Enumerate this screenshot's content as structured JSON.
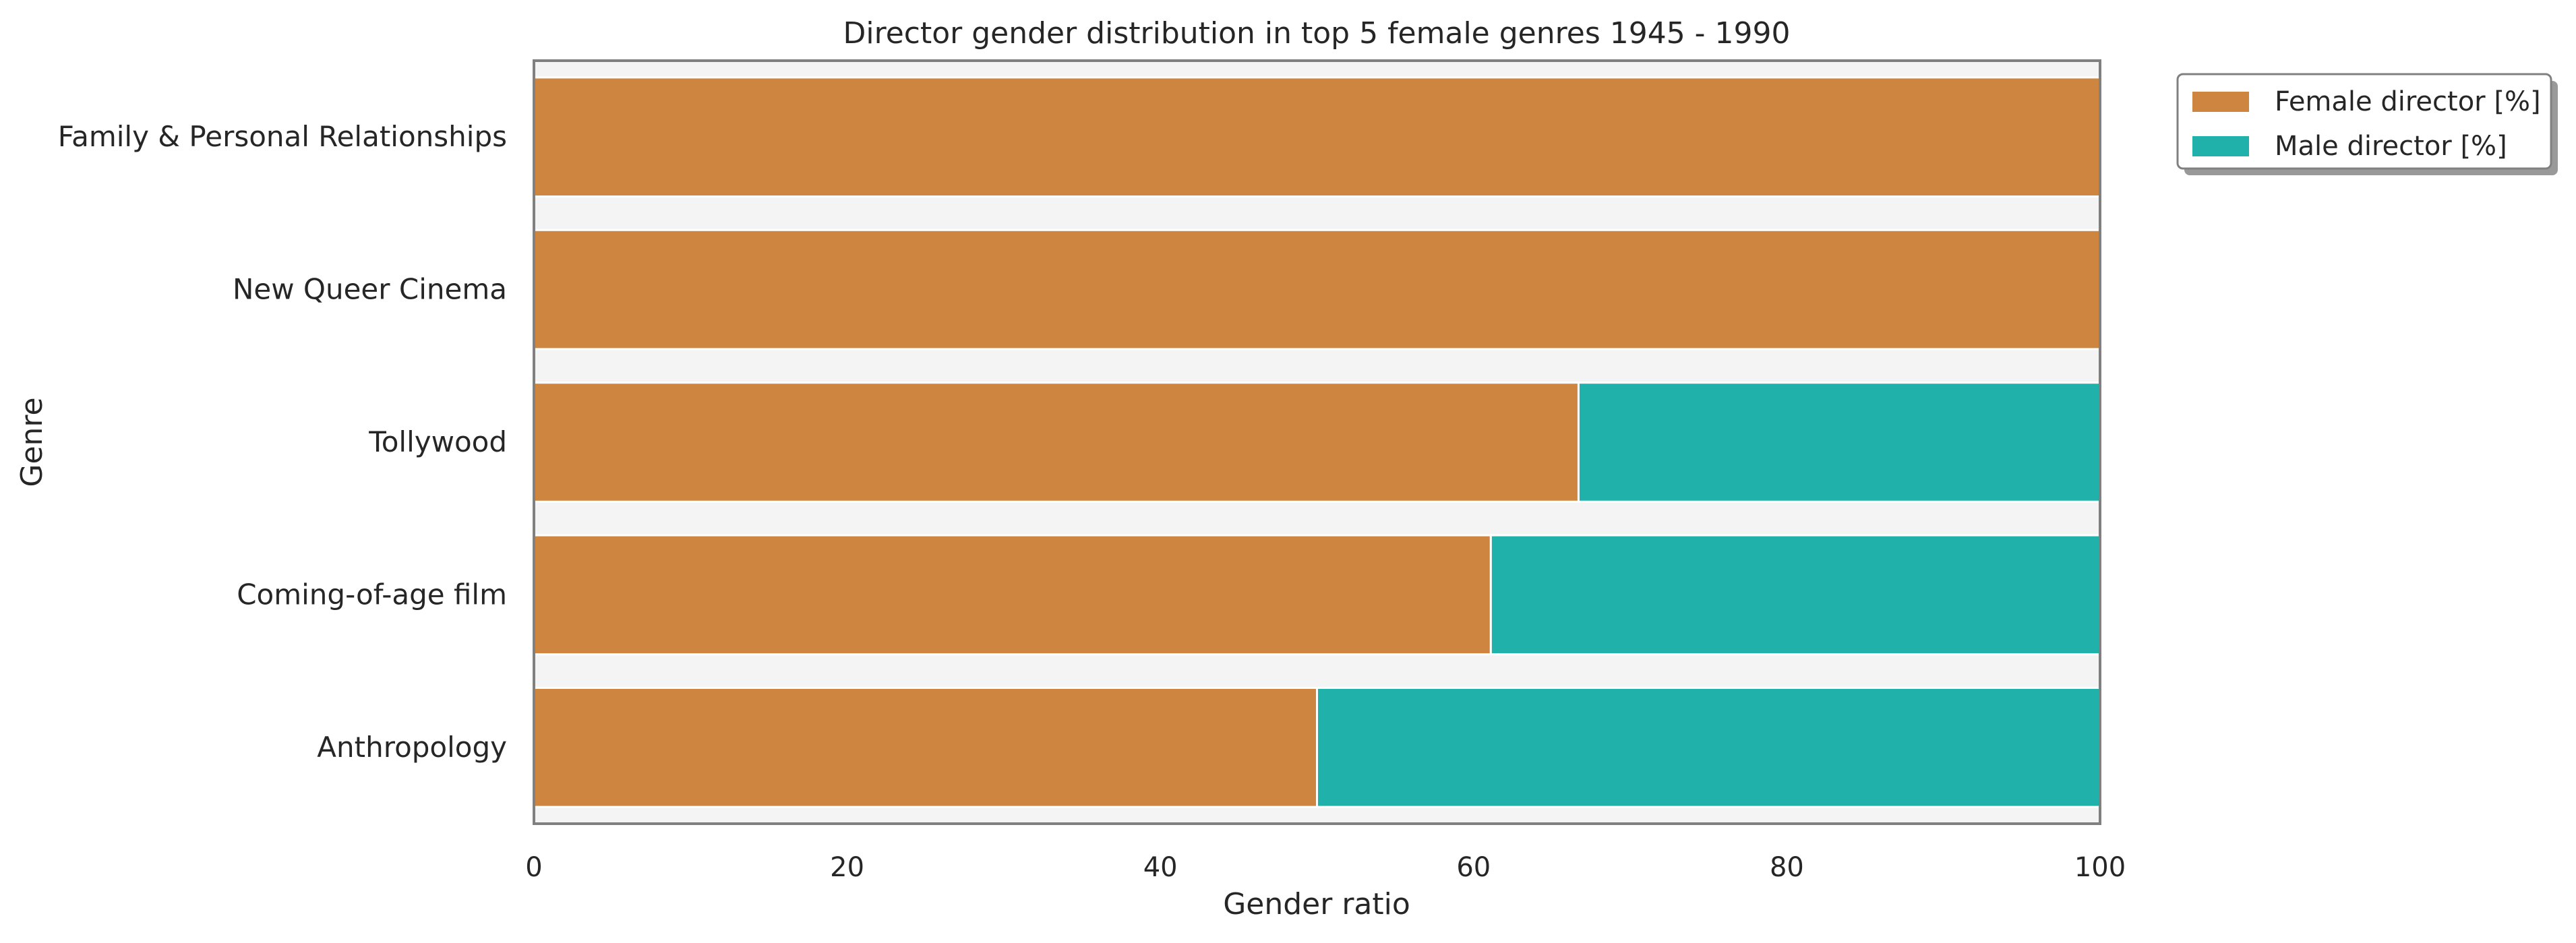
{
  "chart_data": {
    "type": "bar",
    "orientation": "horizontal",
    "stacked": true,
    "title": "Director gender distribution in top 5 female genres 1945 - 1990",
    "xlabel": "Gender ratio",
    "ylabel": "Genre",
    "xlim": [
      0,
      100
    ],
    "xticks": [
      "0",
      "20",
      "40",
      "60",
      "80",
      "100"
    ],
    "categories": [
      "Family & Personal Relationships",
      "New Queer Cinema",
      "Tollywood",
      "Coming-of-age film",
      "Anthropology"
    ],
    "series": [
      {
        "name": "Female director [%]",
        "color": "#cd853f",
        "values": [
          100,
          100,
          66.7,
          61.1,
          50
        ]
      },
      {
        "name": "Male director [%]",
        "color": "#20b2aa",
        "values": [
          0,
          0,
          33.3,
          38.9,
          50
        ]
      }
    ],
    "grid": false,
    "legend_position": "outside-top-right",
    "plot_background": "#f4f4f4",
    "frame_color": "#808080"
  }
}
